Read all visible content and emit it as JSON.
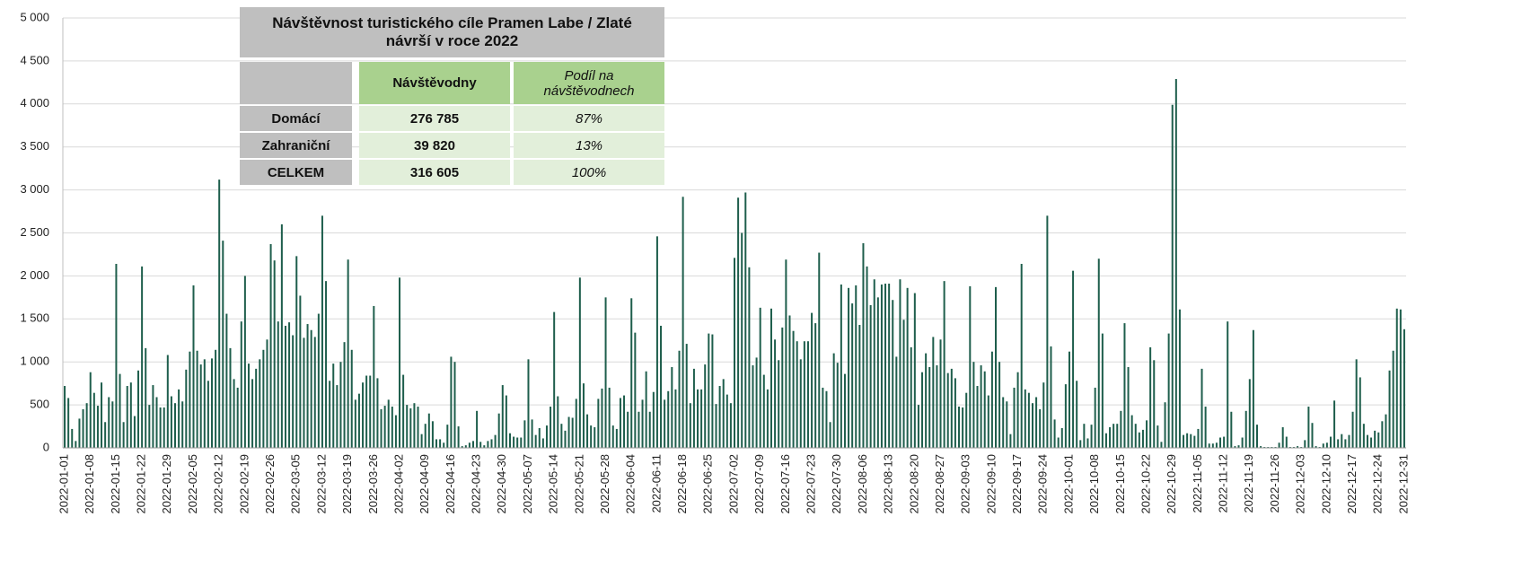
{
  "chart_data": {
    "type": "bar",
    "color": "#1e5e4c",
    "grid": true,
    "ylim": [
      0,
      5000
    ],
    "yticks": [
      0,
      {
        "value": 500,
        "label": "500"
      },
      {
        "value": 1000,
        "label": "1 000"
      },
      {
        "value": 1500,
        "label": "1 500"
      },
      {
        "value": 2000,
        "label": "2 000"
      },
      {
        "value": 2500,
        "label": "2 500"
      },
      {
        "value": 3000,
        "label": "3 000"
      },
      {
        "value": 3500,
        "label": "3 500"
      },
      {
        "value": 4000,
        "label": "4 000"
      },
      {
        "value": 4500,
        "label": "4 500"
      },
      {
        "value": 5000,
        "label": "5 000"
      }
    ],
    "categories": [
      "2022-01-01",
      null,
      null,
      null,
      null,
      null,
      null,
      "2022-01-08",
      null,
      null,
      null,
      null,
      null,
      null,
      "2022-01-15",
      null,
      null,
      null,
      null,
      null,
      null,
      "2022-01-22",
      null,
      null,
      null,
      null,
      null,
      null,
      "2022-01-29",
      null,
      null,
      null,
      null,
      null,
      null,
      "2022-02-05",
      null,
      null,
      null,
      null,
      null,
      null,
      "2022-02-12",
      null,
      null,
      null,
      null,
      null,
      null,
      "2022-02-19",
      null,
      null,
      null,
      null,
      null,
      null,
      "2022-02-26",
      null,
      null,
      null,
      null,
      null,
      null,
      "2022-03-05",
      null,
      null,
      null,
      null,
      null,
      null,
      "2022-03-12",
      null,
      null,
      null,
      null,
      null,
      null,
      "2022-03-19",
      null,
      null,
      null,
      null,
      null,
      null,
      "2022-03-26",
      null,
      null,
      null,
      null,
      null,
      null,
      "2022-04-02",
      null,
      null,
      null,
      null,
      null,
      null,
      "2022-04-09",
      null,
      null,
      null,
      null,
      null,
      null,
      "2022-04-16",
      null,
      null,
      null,
      null,
      null,
      null,
      "2022-04-23",
      null,
      null,
      null,
      null,
      null,
      null,
      "2022-04-30",
      null,
      null,
      null,
      null,
      null,
      null,
      "2022-05-07",
      null,
      null,
      null,
      null,
      null,
      null,
      "2022-05-14",
      null,
      null,
      null,
      null,
      null,
      null,
      "2022-05-21",
      null,
      null,
      null,
      null,
      null,
      null,
      "2022-05-28",
      null,
      null,
      null,
      null,
      null,
      null,
      "2022-06-04",
      null,
      null,
      null,
      null,
      null,
      null,
      "2022-06-11",
      null,
      null,
      null,
      null,
      null,
      null,
      "2022-06-18",
      null,
      null,
      null,
      null,
      null,
      null,
      "2022-06-25",
      null,
      null,
      null,
      null,
      null,
      null,
      "2022-07-02",
      null,
      null,
      null,
      null,
      null,
      null,
      "2022-07-09",
      null,
      null,
      null,
      null,
      null,
      null,
      "2022-07-16",
      null,
      null,
      null,
      null,
      null,
      null,
      "2022-07-23",
      null,
      null,
      null,
      null,
      null,
      null,
      "2022-07-30",
      null,
      null,
      null,
      null,
      null,
      null,
      "2022-08-06",
      null,
      null,
      null,
      null,
      null,
      null,
      "2022-08-13",
      null,
      null,
      null,
      null,
      null,
      null,
      "2022-08-20",
      null,
      null,
      null,
      null,
      null,
      null,
      "2022-08-27",
      null,
      null,
      null,
      null,
      null,
      null,
      "2022-09-03",
      null,
      null,
      null,
      null,
      null,
      null,
      "2022-09-10",
      null,
      null,
      null,
      null,
      null,
      null,
      "2022-09-17",
      null,
      null,
      null,
      null,
      null,
      null,
      "2022-09-24",
      null,
      null,
      null,
      null,
      null,
      null,
      "2022-10-01",
      null,
      null,
      null,
      null,
      null,
      null,
      "2022-10-08",
      null,
      null,
      null,
      null,
      null,
      null,
      "2022-10-15",
      null,
      null,
      null,
      null,
      null,
      null,
      "2022-10-22",
      null,
      null,
      null,
      null,
      null,
      null,
      "2022-10-29",
      null,
      null,
      null,
      null,
      null,
      null,
      "2022-11-05",
      null,
      null,
      null,
      null,
      null,
      null,
      "2022-11-12",
      null,
      null,
      null,
      null,
      null,
      null,
      "2022-11-19",
      null,
      null,
      null,
      null,
      null,
      null,
      "2022-11-26",
      null,
      null,
      null,
      null,
      null,
      null,
      "2022-12-03",
      null,
      null,
      null,
      null,
      null,
      null,
      "2022-12-10",
      null,
      null,
      null,
      null,
      null,
      null,
      "2022-12-17",
      null,
      null,
      null,
      null,
      null,
      null,
      "2022-12-24",
      null,
      null,
      null,
      null,
      null,
      null,
      "2022-12-31"
    ],
    "values": [
      720,
      580,
      220,
      80,
      340,
      450,
      520,
      880,
      640,
      490,
      760,
      300,
      590,
      540,
      2140,
      860,
      300,
      720,
      760,
      370,
      900,
      2110,
      1160,
      500,
      730,
      590,
      470,
      470,
      1080,
      600,
      520,
      680,
      540,
      910,
      1120,
      1890,
      1130,
      970,
      1030,
      780,
      1040,
      1140,
      3120,
      2410,
      1560,
      1160,
      800,
      700,
      1470,
      2000,
      980,
      800,
      920,
      1030,
      1140,
      1260,
      2370,
      2180,
      1470,
      2600,
      1420,
      1460,
      1310,
      2230,
      1770,
      1280,
      1440,
      1370,
      1290,
      1560,
      2700,
      1940,
      780,
      980,
      730,
      1000,
      1230,
      2190,
      1140,
      560,
      630,
      760,
      840,
      840,
      1650,
      810,
      450,
      490,
      560,
      480,
      380,
      1980,
      850,
      500,
      460,
      520,
      480,
      160,
      280,
      400,
      310,
      100,
      100,
      60,
      270,
      1060,
      1000,
      250,
      20,
      30,
      60,
      80,
      430,
      70,
      30,
      80,
      100,
      150,
      400,
      730,
      610,
      170,
      130,
      120,
      120,
      320,
      1030,
      330,
      150,
      230,
      110,
      260,
      480,
      1580,
      600,
      280,
      200,
      360,
      350,
      570,
      1980,
      750,
      390,
      260,
      240,
      570,
      690,
      1750,
      700,
      260,
      220,
      580,
      610,
      420,
      1740,
      1340,
      420,
      560,
      890,
      420,
      650,
      2460,
      1420,
      560,
      660,
      940,
      680,
      1130,
      2920,
      1210,
      520,
      920,
      680,
      680,
      970,
      1330,
      1320,
      510,
      720,
      800,
      620,
      520,
      2210,
      2910,
      2500,
      2970,
      2100,
      960,
      1050,
      1630,
      850,
      680,
      1620,
      1260,
      1020,
      1400,
      2190,
      1540,
      1360,
      1240,
      1030,
      1240,
      1240,
      1570,
      1450,
      2270,
      700,
      660,
      300,
      1100,
      990,
      1900,
      860,
      1860,
      1680,
      1890,
      1430,
      2380,
      2110,
      1660,
      1960,
      1750,
      1900,
      1910,
      1910,
      1720,
      1060,
      1960,
      1490,
      1860,
      1170,
      1800,
      500,
      880,
      1100,
      940,
      1290,
      960,
      1260,
      1940,
      870,
      920,
      810,
      480,
      470,
      640,
      1880,
      1000,
      720,
      960,
      890,
      610,
      1120,
      1870,
      1000,
      590,
      540,
      160,
      700,
      880,
      2140,
      680,
      640,
      520,
      590,
      450,
      760,
      2700,
      1180,
      330,
      120,
      230,
      740,
      1120,
      2060,
      780,
      90,
      280,
      110,
      270,
      700,
      2200,
      1330,
      170,
      240,
      280,
      280,
      430,
      1450,
      940,
      380,
      280,
      180,
      210,
      320,
      1170,
      1020,
      260,
      70,
      530,
      1330,
      3990,
      4290,
      1610,
      150,
      170,
      160,
      140,
      220,
      920,
      480,
      50,
      50,
      60,
      120,
      130,
      1470,
      420,
      20,
      30,
      120,
      430,
      800,
      1370,
      270,
      20,
      10,
      10,
      10,
      10,
      60,
      240,
      130,
      10,
      10,
      20,
      10,
      90,
      480,
      290,
      20,
      10,
      50,
      60,
      130,
      550,
      100,
      160,
      100,
      150,
      420,
      1030,
      820,
      280,
      150,
      120,
      200,
      180,
      310,
      390,
      900,
      1130,
      1620,
      1610,
      1380
    ]
  },
  "table": {
    "title": "Návštěvnost turistického cíle Pramen Labe / Zlaté návrší v roce 2022",
    "header": [
      "Návštěvodny",
      "Podíl na návštěvodnech"
    ],
    "rows": [
      [
        "Domácí",
        "276 785",
        "87%"
      ],
      [
        "Zahraniční",
        "39 820",
        "13%"
      ],
      [
        "CELKEM",
        "316 605",
        "100%"
      ]
    ]
  }
}
